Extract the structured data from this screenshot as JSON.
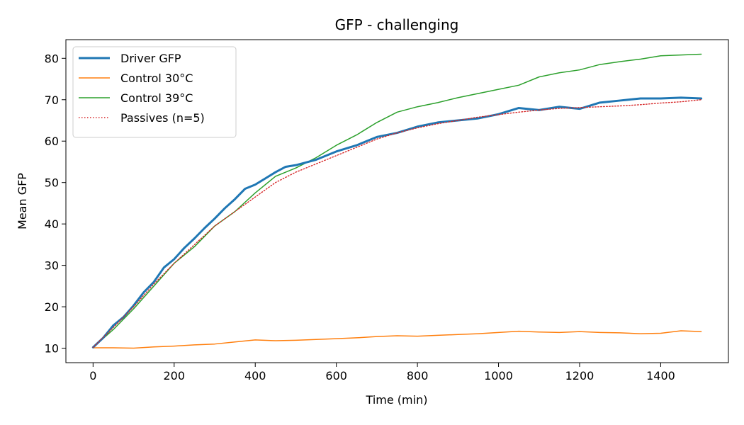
{
  "chart_data": {
    "type": "line",
    "title": "GFP - challenging",
    "xlabel": "Time (min)",
    "ylabel": "Mean GFP",
    "xlim": [
      -67,
      1567
    ],
    "ylim": [
      6.5,
      84.5
    ],
    "xticks": [
      0,
      200,
      400,
      600,
      800,
      1000,
      1200,
      1400
    ],
    "yticks": [
      10,
      20,
      30,
      40,
      50,
      60,
      70,
      80
    ],
    "grid": false,
    "legend_position": "upper left",
    "series": [
      {
        "name": "Driver GFP",
        "color": "#1f77b4",
        "style": "solid-thick",
        "x": [
          0,
          25,
          50,
          75,
          100,
          125,
          150,
          175,
          200,
          225,
          250,
          275,
          300,
          325,
          350,
          375,
          400,
          425,
          450,
          475,
          500,
          550,
          600,
          650,
          700,
          750,
          800,
          850,
          900,
          950,
          1000,
          1050,
          1100,
          1150,
          1200,
          1250,
          1300,
          1350,
          1400,
          1450,
          1500
        ],
        "y": [
          10.2,
          12.5,
          15.5,
          17.5,
          20.3,
          23.5,
          26,
          29.5,
          31.5,
          34.2,
          36.5,
          39,
          41.3,
          43.8,
          46,
          48.5,
          49.5,
          51,
          52.5,
          53.8,
          54.2,
          55.5,
          57.5,
          59,
          61,
          62,
          63.5,
          64.5,
          65,
          65.5,
          66.5,
          68,
          67.5,
          68.3,
          67.8,
          69.3,
          69.8,
          70.3,
          70.3,
          70.5,
          70.3
        ]
      },
      {
        "name": "Control 30°C",
        "color": "#ff7f0e",
        "style": "solid",
        "x": [
          0,
          50,
          100,
          150,
          200,
          250,
          300,
          350,
          400,
          450,
          500,
          550,
          600,
          650,
          700,
          750,
          800,
          850,
          900,
          950,
          1000,
          1050,
          1100,
          1150,
          1200,
          1250,
          1300,
          1350,
          1400,
          1450,
          1500
        ],
        "y": [
          10.1,
          10.1,
          10.0,
          10.3,
          10.5,
          10.8,
          11.0,
          11.5,
          12.0,
          11.8,
          11.9,
          12.1,
          12.3,
          12.5,
          12.8,
          13.0,
          12.9,
          13.1,
          13.3,
          13.5,
          13.8,
          14.1,
          13.9,
          13.8,
          14.0,
          13.8,
          13.7,
          13.5,
          13.6,
          14.2,
          14.0
        ]
      },
      {
        "name": "Control 39°C",
        "color": "#2ca02c",
        "style": "solid",
        "x": [
          0,
          50,
          100,
          150,
          200,
          250,
          300,
          350,
          400,
          450,
          500,
          550,
          600,
          650,
          700,
          750,
          800,
          850,
          900,
          950,
          1000,
          1050,
          1100,
          1150,
          1200,
          1250,
          1300,
          1350,
          1400,
          1450,
          1500
        ],
        "y": [
          10.2,
          14.5,
          19.5,
          25,
          30.5,
          34.5,
          39.5,
          43,
          47.5,
          51.5,
          53.5,
          56,
          59,
          61.5,
          64.5,
          67,
          68.3,
          69.3,
          70.5,
          71.5,
          72.5,
          73.5,
          75.5,
          76.5,
          77.2,
          78.5,
          79.2,
          79.8,
          80.6,
          80.8,
          81.0
        ]
      },
      {
        "name": "Passives (n=5)",
        "color": "#d62728",
        "style": "dotted",
        "x": [
          0,
          50,
          100,
          150,
          200,
          250,
          300,
          350,
          400,
          450,
          500,
          550,
          600,
          650,
          700,
          750,
          800,
          850,
          900,
          950,
          1000,
          1050,
          1100,
          1150,
          1200,
          1250,
          1300,
          1350,
          1400,
          1450,
          1500
        ],
        "y": [
          10.2,
          15,
          20,
          25.5,
          30.5,
          35,
          39.5,
          43,
          46.5,
          50,
          52.5,
          54.5,
          56.5,
          58.5,
          60.5,
          62,
          63.2,
          64.2,
          65,
          65.8,
          66.4,
          67,
          67.5,
          67.9,
          68.1,
          68.3,
          68.5,
          68.8,
          69.2,
          69.5,
          70.0
        ]
      }
    ]
  }
}
